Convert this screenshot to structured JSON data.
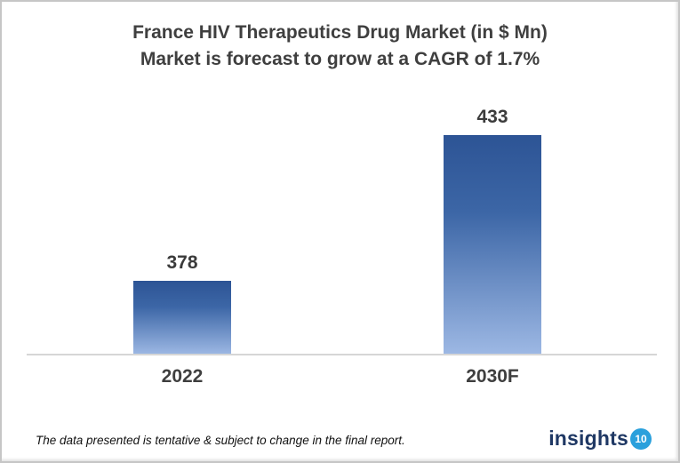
{
  "chart_data": {
    "type": "bar",
    "title": "France HIV Therapeutics Drug Market (in $ Mn)",
    "subtitle": "Market is forecast to grow at a CAGR of 1.7%",
    "categories": [
      "2022",
      "2030F"
    ],
    "values": [
      378,
      433
    ],
    "ylim": [
      350,
      450
    ],
    "grid": false,
    "legend": false,
    "bar_color_top": "#2d5495",
    "bar_color_bottom": "#9db8e4",
    "axis_line_color": "#d6d6d6"
  },
  "footer": {
    "note": "The data presented is tentative & subject to change in the final report.",
    "logo_text": "insights",
    "logo_badge": "10",
    "logo_text_color": "#1f3864",
    "logo_badge_color": "#2aa0dc"
  }
}
